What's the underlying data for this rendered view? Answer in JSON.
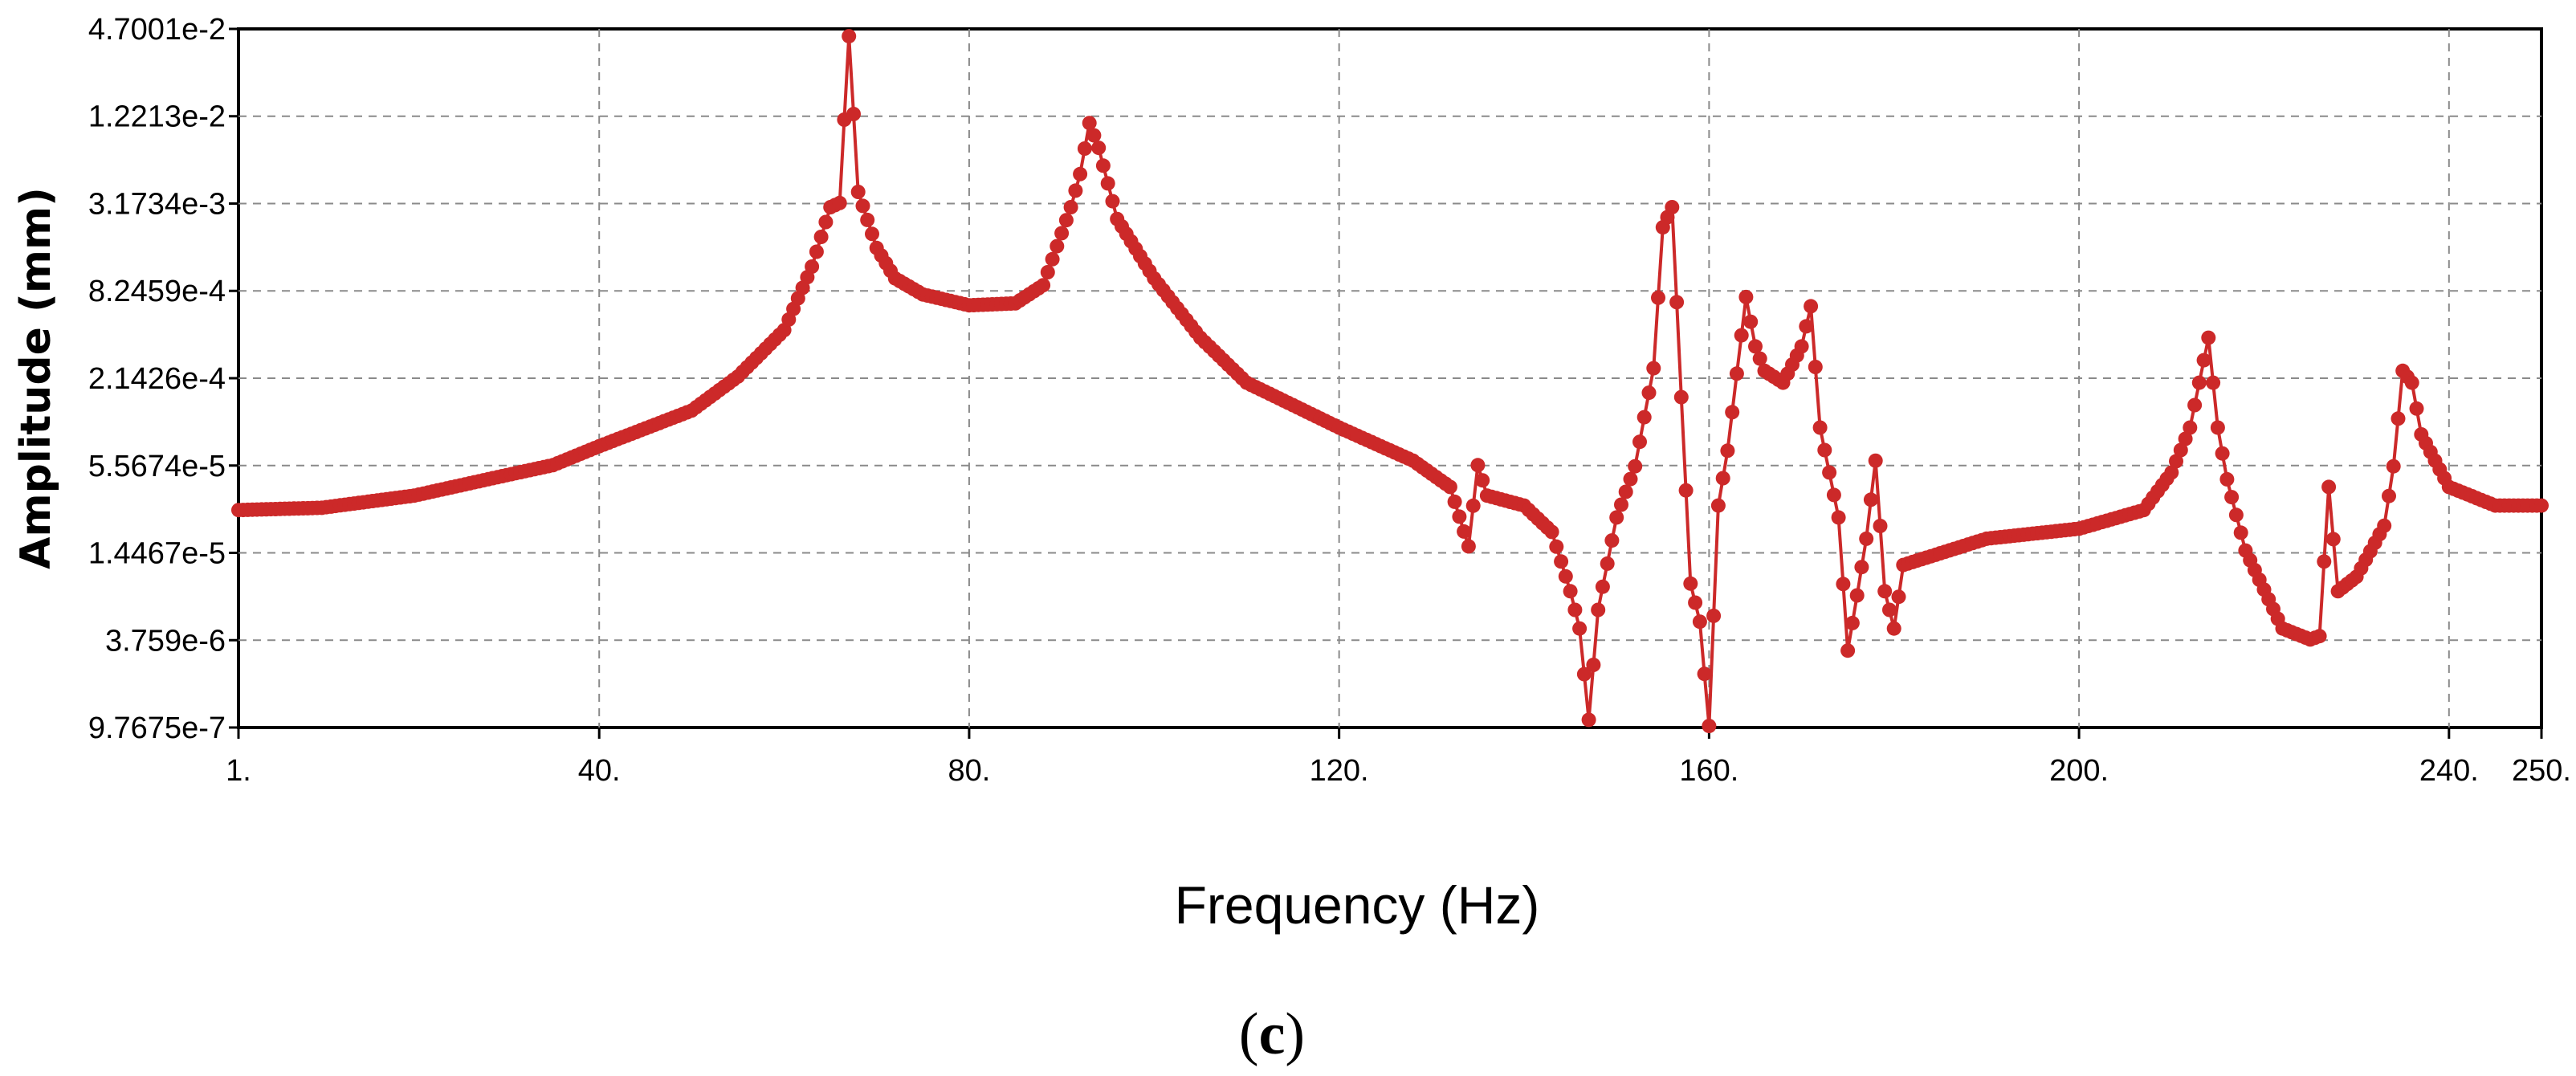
{
  "chart_data": {
    "type": "line",
    "xlabel": "Frequency (Hz)",
    "ylabel": "Amplitude (mm)",
    "yscale": "log",
    "marker": "filled-circle",
    "grid": true,
    "grid_style": "dashed",
    "line_color": "#cc2929",
    "xlim": [
      1,
      250
    ],
    "ylim": [
      9.7675e-07,
      0.047001
    ],
    "x_ticks": [
      {
        "value": 1,
        "label": "1."
      },
      {
        "value": 40,
        "label": "40."
      },
      {
        "value": 80,
        "label": "80."
      },
      {
        "value": 120,
        "label": "120."
      },
      {
        "value": 160,
        "label": "160."
      },
      {
        "value": 200,
        "label": "200."
      },
      {
        "value": 240,
        "label": "240."
      },
      {
        "value": 250,
        "label": "250."
      }
    ],
    "y_ticks": [
      {
        "value": 9.7675e-07,
        "label": "9.7675e-7"
      },
      {
        "value": 3.759e-06,
        "label": "3.759e-6"
      },
      {
        "value": 1.4467e-05,
        "label": "1.4467e-5"
      },
      {
        "value": 5.5674e-05,
        "label": "5.5674e-5"
      },
      {
        "value": 0.00021426,
        "label": "2.1426e-4"
      },
      {
        "value": 0.00082459,
        "label": "8.2459e-4"
      },
      {
        "value": 0.0031734,
        "label": "3.1734e-3"
      },
      {
        "value": 0.012213,
        "label": "1.2213e-2"
      },
      {
        "value": 0.047001,
        "label": "4.7001e-2"
      }
    ],
    "series": [
      {
        "points": [
          [
            1,
            2.8e-05
          ],
          [
            10,
            2.9e-05
          ],
          [
            20,
            3.5e-05
          ],
          [
            30,
            4.8e-05
          ],
          [
            35,
            5.6e-05
          ],
          [
            40,
            7.5e-05
          ],
          [
            50,
            0.00013
          ],
          [
            55,
            0.00022
          ],
          [
            60,
            0.00045
          ],
          [
            63,
            0.0012
          ],
          [
            65,
            0.003
          ],
          [
            66,
            0.0032
          ],
          [
            67,
            0.042
          ],
          [
            68,
            0.0038
          ],
          [
            70,
            0.0016
          ],
          [
            72,
            0.001
          ],
          [
            75,
            0.00078
          ],
          [
            80,
            0.00066
          ],
          [
            85,
            0.00068
          ],
          [
            88,
            0.0009
          ],
          [
            91,
            0.003
          ],
          [
            92,
            0.005
          ],
          [
            93,
            0.011
          ],
          [
            94,
            0.0075
          ],
          [
            96,
            0.0025
          ],
          [
            100,
            0.001
          ],
          [
            105,
            0.0004
          ],
          [
            110,
            0.0002
          ],
          [
            120,
            0.0001
          ],
          [
            128,
            6e-05
          ],
          [
            132,
            4e-05
          ],
          [
            134,
            1.6e-05
          ],
          [
            135,
            5.6e-05
          ],
          [
            136,
            3.5e-05
          ],
          [
            140,
            3e-05
          ],
          [
            143,
            2e-05
          ],
          [
            145,
            8e-06
          ],
          [
            146,
            4.5e-06
          ],
          [
            147,
            1.1e-06
          ],
          [
            148,
            6e-06
          ],
          [
            150,
            2.5e-05
          ],
          [
            152,
            5.5e-05
          ],
          [
            154,
            0.00025
          ],
          [
            155,
            0.0022
          ],
          [
            156,
            0.003
          ],
          [
            157,
            0.00016
          ],
          [
            158,
            9e-06
          ],
          [
            159,
            5e-06
          ],
          [
            160,
            1e-06
          ],
          [
            161,
            3e-05
          ],
          [
            162,
            7e-05
          ],
          [
            163,
            0.00023
          ],
          [
            164,
            0.00075
          ],
          [
            165,
            0.00035
          ],
          [
            166,
            0.00024
          ],
          [
            168,
            0.0002
          ],
          [
            170,
            0.00035
          ],
          [
            171,
            0.00065
          ],
          [
            172,
            0.0001
          ],
          [
            174,
            2.5e-05
          ],
          [
            175,
            3.2e-06
          ],
          [
            176,
            7.5e-06
          ],
          [
            177,
            1.8e-05
          ],
          [
            178,
            6e-05
          ],
          [
            179,
            8e-06
          ],
          [
            180,
            4.5e-06
          ],
          [
            181,
            1.2e-05
          ],
          [
            190,
            1.8e-05
          ],
          [
            200,
            2.1e-05
          ],
          [
            207,
            2.8e-05
          ],
          [
            210,
            5e-05
          ],
          [
            212,
            0.0001
          ],
          [
            214,
            0.0004
          ],
          [
            215,
            0.0001
          ],
          [
            216,
            4.5e-05
          ],
          [
            218,
            1.5e-05
          ],
          [
            222,
            4.5e-06
          ],
          [
            225,
            3.8e-06
          ],
          [
            226,
            4e-06
          ],
          [
            227,
            4e-05
          ],
          [
            228,
            8e-06
          ],
          [
            230,
            1e-05
          ],
          [
            233,
            2.2e-05
          ],
          [
            234,
            5.5e-05
          ],
          [
            235,
            0.00024
          ],
          [
            236,
            0.0002
          ],
          [
            237,
            9e-05
          ],
          [
            240,
            4e-05
          ],
          [
            245,
            3e-05
          ],
          [
            250,
            3e-05
          ]
        ]
      }
    ]
  },
  "caption": {
    "open": "(",
    "letter": "c",
    "close": ")"
  }
}
